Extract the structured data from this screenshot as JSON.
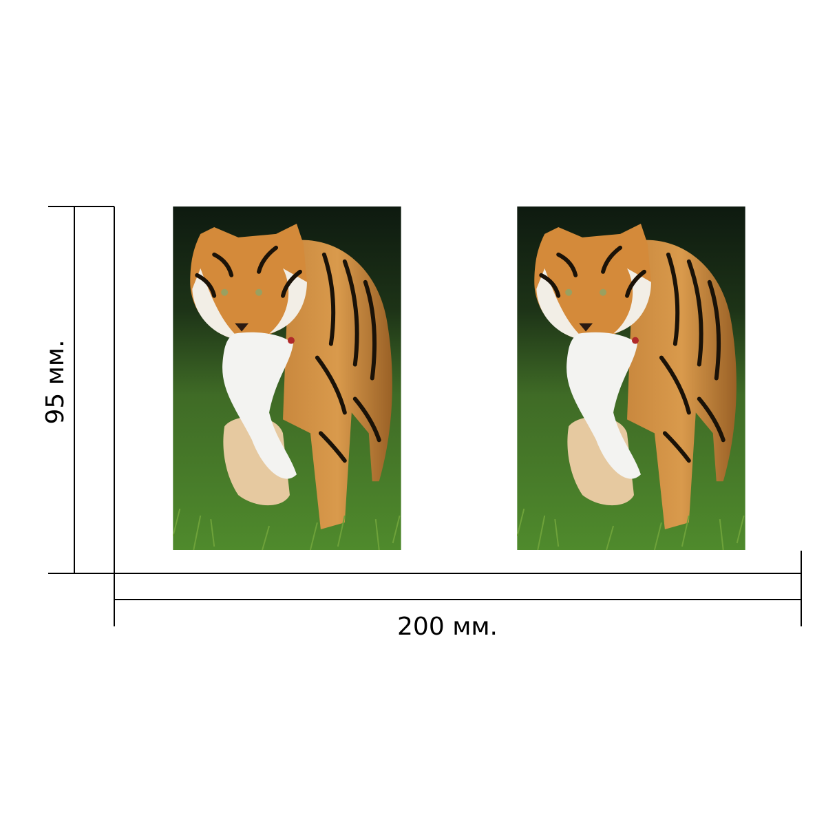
{
  "dimensions": {
    "height_label": "95 мм.",
    "width_label": "200 мм."
  }
}
